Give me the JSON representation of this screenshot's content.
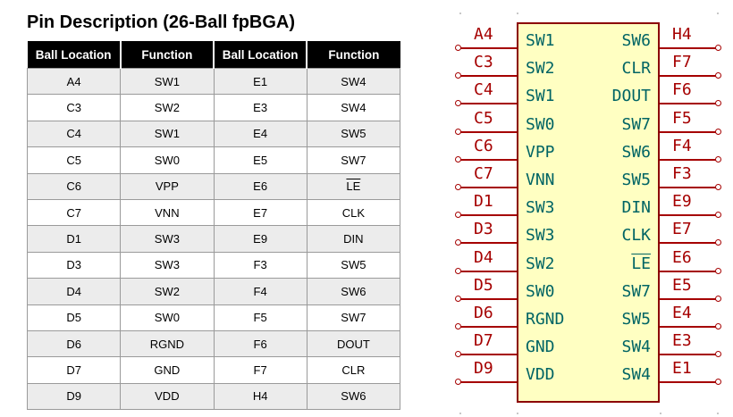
{
  "table": {
    "title": "Pin Description (26-Ball fpBGA)",
    "headers": [
      "Ball Location",
      "Function",
      "Ball Location",
      "Function"
    ],
    "rows": [
      [
        "A4",
        "SW1",
        "E1",
        "SW4"
      ],
      [
        "C3",
        "SW2",
        "E3",
        "SW4"
      ],
      [
        "C4",
        "SW1",
        "E4",
        "SW5"
      ],
      [
        "C5",
        "SW0",
        "E5",
        "SW7"
      ],
      [
        "C6",
        "VPP",
        "E6",
        "LE"
      ],
      [
        "C7",
        "VNN",
        "E7",
        "CLK"
      ],
      [
        "D1",
        "SW3",
        "E9",
        "DIN"
      ],
      [
        "D3",
        "SW3",
        "F3",
        "SW5"
      ],
      [
        "D4",
        "SW2",
        "F4",
        "SW6"
      ],
      [
        "D5",
        "SW0",
        "F5",
        "SW7"
      ],
      [
        "D6",
        "RGND",
        "F6",
        "DOUT"
      ],
      [
        "D7",
        "GND",
        "F7",
        "CLR"
      ],
      [
        "D9",
        "VDD",
        "H4",
        "SW6"
      ]
    ]
  },
  "symbol": {
    "left_pins": [
      {
        "num": "A4",
        "name": "SW1"
      },
      {
        "num": "C3",
        "name": "SW2"
      },
      {
        "num": "C4",
        "name": "SW1"
      },
      {
        "num": "C5",
        "name": "SW0"
      },
      {
        "num": "C6",
        "name": "VPP"
      },
      {
        "num": "C7",
        "name": "VNN"
      },
      {
        "num": "D1",
        "name": "SW3"
      },
      {
        "num": "D3",
        "name": "SW3"
      },
      {
        "num": "D4",
        "name": "SW2"
      },
      {
        "num": "D5",
        "name": "SW0"
      },
      {
        "num": "D6",
        "name": "RGND"
      },
      {
        "num": "D7",
        "name": "GND"
      },
      {
        "num": "D9",
        "name": "VDD"
      }
    ],
    "right_pins": [
      {
        "num": "H4",
        "name": "SW6"
      },
      {
        "num": "F7",
        "name": "CLR"
      },
      {
        "num": "F6",
        "name": "DOUT"
      },
      {
        "num": "F5",
        "name": "SW7"
      },
      {
        "num": "F4",
        "name": "SW6"
      },
      {
        "num": "F3",
        "name": "SW5"
      },
      {
        "num": "E9",
        "name": "DIN"
      },
      {
        "num": "E7",
        "name": "CLK"
      },
      {
        "num": "E6",
        "name": "LE"
      },
      {
        "num": "E5",
        "name": "SW7"
      },
      {
        "num": "E4",
        "name": "SW5"
      },
      {
        "num": "E3",
        "name": "SW4"
      },
      {
        "num": "E1",
        "name": "SW4"
      }
    ]
  },
  "colors": {
    "pin_number": "#a50000",
    "pin_name": "#006464",
    "body_fill": "#ffffc2",
    "body_border": "#8b0000",
    "header_bg": "#000000",
    "row_alt": "#ececec"
  }
}
